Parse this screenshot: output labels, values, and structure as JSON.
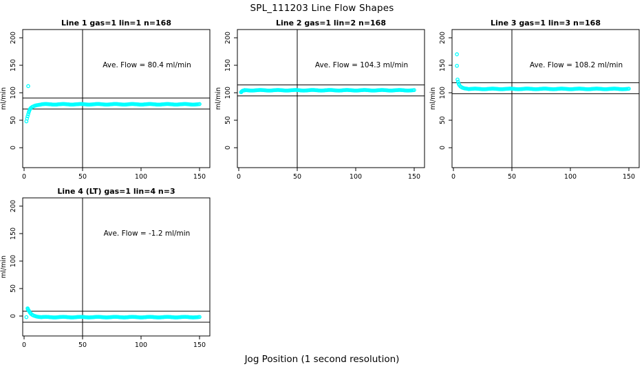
{
  "page": {
    "title": "SPL_111203  Line Flow Shapes",
    "xlabel": "Jog Position (1 second resolution)",
    "background": "#ffffff",
    "point_color": "#00FFFF",
    "axis_color": "#000000"
  },
  "chart_data": [
    {
      "type": "scatter",
      "title": "Line 1 gas=1 lin=1 n=168",
      "ylabel": "ml/min",
      "annotation": "Ave. Flow =  80.4  ml/min",
      "ave_flow": 80.4,
      "unit": "ml/min",
      "x_ticks": [
        0,
        50,
        100,
        150
      ],
      "y_ticks": [
        0,
        50,
        100,
        150,
        200
      ],
      "xlim": [
        0,
        150
      ],
      "ylim": [
        0,
        200
      ],
      "grid": false,
      "vline_x": 50,
      "hlines": [
        90.4,
        70.4
      ],
      "outliers": [
        [
          3.5,
          112
        ]
      ],
      "transient": [
        [
          2,
          48
        ],
        [
          2.5,
          53
        ],
        [
          3,
          57
        ],
        [
          3.5,
          61
        ],
        [
          4,
          64.5
        ],
        [
          4.5,
          67.5
        ],
        [
          5,
          70
        ],
        [
          5.5,
          71.5
        ],
        [
          6,
          72.8
        ],
        [
          7,
          74.2
        ],
        [
          8,
          75.3
        ],
        [
          9,
          76.2
        ],
        [
          10,
          76.9
        ],
        [
          11,
          77.4
        ],
        [
          12,
          77.8
        ],
        [
          13,
          78.1
        ],
        [
          14,
          78.4
        ]
      ],
      "steady": {
        "x_from": 15,
        "x_to": 150,
        "y": 79,
        "step": 1
      }
    },
    {
      "type": "scatter",
      "title": "Line 2 gas=1 lin=2 n=168",
      "ylabel": "ml/min",
      "annotation": "Ave. Flow =  104.3  ml/min",
      "ave_flow": 104.3,
      "unit": "ml/min",
      "x_ticks": [
        0,
        50,
        100,
        150
      ],
      "y_ticks": [
        0,
        50,
        100,
        150,
        200
      ],
      "xlim": [
        0,
        150
      ],
      "ylim": [
        0,
        200
      ],
      "grid": false,
      "vline_x": 50,
      "hlines": [
        114.3,
        94.3
      ],
      "outliers": [],
      "transient": [
        [
          2,
          101
        ],
        [
          2.5,
          102.3
        ],
        [
          3,
          103.2
        ],
        [
          3.5,
          103.8
        ],
        [
          4,
          104.1
        ],
        [
          5,
          104.3
        ]
      ],
      "steady": {
        "x_from": 5,
        "x_to": 150,
        "y": 104.5,
        "step": 1
      }
    },
    {
      "type": "scatter",
      "title": "Line 3 gas=1 lin=3 n=168",
      "ylabel": "ml/min",
      "annotation": "Ave. Flow =  108.2  ml/min",
      "ave_flow": 108.2,
      "unit": "ml/min",
      "x_ticks": [
        0,
        50,
        100,
        150
      ],
      "y_ticks": [
        0,
        50,
        100,
        150,
        200
      ],
      "xlim": [
        0,
        150
      ],
      "ylim": [
        0,
        200
      ],
      "grid": false,
      "vline_x": 50,
      "hlines": [
        118.2,
        98.2
      ],
      "outliers": [
        [
          3,
          170
        ],
        [
          3,
          149
        ]
      ],
      "transient": [
        [
          3.5,
          124
        ],
        [
          4,
          120
        ],
        [
          4.5,
          116.5
        ],
        [
          5,
          114
        ],
        [
          6,
          111.5
        ],
        [
          7,
          110
        ],
        [
          8,
          109
        ],
        [
          9,
          108.3
        ],
        [
          10,
          107.8
        ],
        [
          11,
          107.5
        ],
        [
          12,
          107.3
        ]
      ],
      "steady": {
        "x_from": 13,
        "x_to": 150,
        "y": 107,
        "step": 1
      }
    },
    {
      "type": "scatter",
      "title": "Line 4 (LT) gas=1 lin=4 n=3",
      "ylabel": "ml/min",
      "annotation": "Ave. Flow =  -1.2  ml/min",
      "ave_flow": -1.2,
      "unit": "ml/min",
      "x_ticks": [
        0,
        50,
        100,
        150
      ],
      "y_ticks": [
        0,
        50,
        100,
        150,
        200
      ],
      "xlim": [
        0,
        150
      ],
      "ylim": [
        0,
        200
      ],
      "grid": false,
      "vline_x": 50,
      "hlines": [
        8.8,
        -11.2
      ],
      "outliers": [
        [
          2,
          -2
        ]
      ],
      "transient": [
        [
          3,
          14
        ],
        [
          3.2,
          12.8
        ],
        [
          3.5,
          11.5
        ],
        [
          4,
          10
        ],
        [
          4.5,
          8.2
        ],
        [
          5,
          6.4
        ],
        [
          5.5,
          5
        ],
        [
          6,
          3.8
        ],
        [
          7,
          2.2
        ],
        [
          8,
          1
        ],
        [
          9,
          0.2
        ],
        [
          10,
          -0.5
        ],
        [
          11,
          -1
        ],
        [
          12,
          -1.4
        ],
        [
          13,
          -1.7
        ],
        [
          14,
          -1.9
        ]
      ],
      "steady": {
        "x_from": 15,
        "x_to": 150,
        "y": -2,
        "step": 1
      }
    }
  ]
}
